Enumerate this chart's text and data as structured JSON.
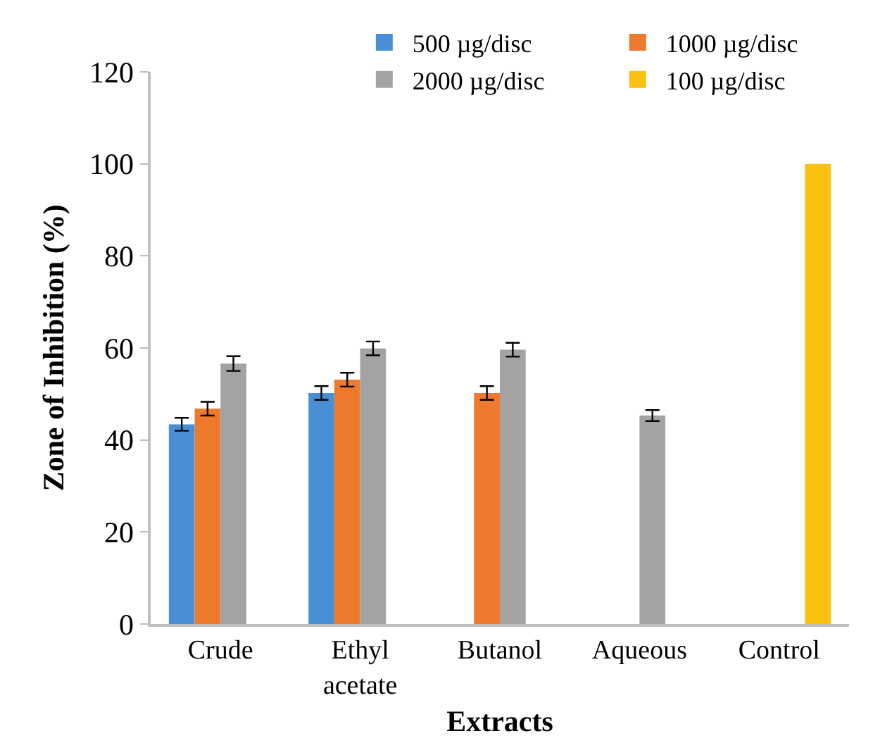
{
  "chart_data": {
    "type": "bar",
    "xlabel": "Extracts",
    "ylabel": "Zone of Inhibition (%)",
    "categories": [
      "Crude",
      "Ethyl\nacetate",
      "Butanol",
      "Aqueous",
      "Control"
    ],
    "series": [
      {
        "name": "500 µg/disc",
        "color": "#4a8fd6",
        "values": [
          43.4,
          50.2,
          null,
          null,
          null
        ],
        "errors": [
          1.4,
          1.5,
          null,
          null,
          null
        ]
      },
      {
        "name": "1000 µg/disc",
        "color": "#ee7a2e",
        "values": [
          46.8,
          53.1,
          50.2,
          null,
          null
        ],
        "errors": [
          1.5,
          1.5,
          1.5,
          null,
          null
        ]
      },
      {
        "name": "2000 µg/disc",
        "color": "#a3a3a3",
        "values": [
          56.6,
          59.9,
          59.6,
          45.3,
          null
        ],
        "errors": [
          1.6,
          1.5,
          1.5,
          1.2,
          null
        ]
      },
      {
        "name": "100 µg/disc",
        "color": "#fcc010",
        "values": [
          null,
          null,
          null,
          null,
          100
        ]
      }
    ],
    "ylim": [
      0,
      120
    ],
    "yticks": [
      0,
      20,
      40,
      60,
      80,
      100,
      120
    ],
    "grid": false,
    "legend": "top right"
  }
}
